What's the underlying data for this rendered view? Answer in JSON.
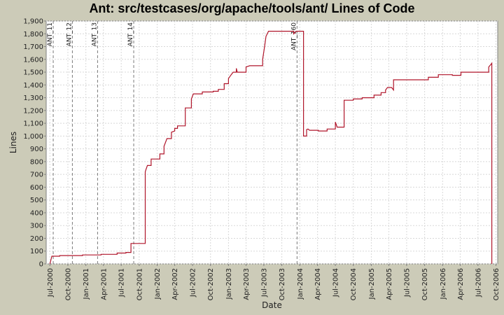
{
  "chart_data": {
    "type": "line",
    "title": "Ant: src/testcases/org/apache/tools/ant/ Lines of Code",
    "xlabel": "Date",
    "ylabel": "Lines",
    "ylim": [
      0,
      1900
    ],
    "y_ticks": [
      0,
      100,
      200,
      300,
      400,
      500,
      600,
      700,
      800,
      900,
      1000,
      1100,
      1200,
      1300,
      1400,
      1500,
      1600,
      1700,
      1800,
      1900
    ],
    "x_ticks": [
      "Jul-2000",
      "Oct-2000",
      "Jan-2001",
      "Apr-2001",
      "Jul-2001",
      "Oct-2001",
      "Jan-2002",
      "Apr-2002",
      "Jul-2002",
      "Oct-2002",
      "Jan-2003",
      "Apr-2003",
      "Jul-2003",
      "Oct-2003",
      "Jan-2004",
      "Apr-2004",
      "Jul-2004",
      "Oct-2004",
      "Jan-2005",
      "Apr-2005",
      "Jul-2005",
      "Oct-2005",
      "Jan-2006",
      "Apr-2006",
      "Jul-2006",
      "Oct-2006"
    ],
    "grid": true,
    "markers": [
      {
        "label": "ANT_11",
        "date": "2000-07-18"
      },
      {
        "label": "ANT_12",
        "date": "2000-10-24"
      },
      {
        "label": "ANT_13",
        "date": "2001-03-02"
      },
      {
        "label": "ANT_14",
        "date": "2001-09-03"
      },
      {
        "label": "ANT_160",
        "date": "2003-12-18"
      }
    ],
    "series": [
      {
        "color": "#b0162b",
        "points": [
          [
            "2000-07-01",
            0
          ],
          [
            "2000-07-06",
            30
          ],
          [
            "2000-07-11",
            60
          ],
          [
            "2000-08-20",
            60
          ],
          [
            "2000-08-20",
            65
          ],
          [
            "2000-12-15",
            65
          ],
          [
            "2000-12-15",
            70
          ],
          [
            "2001-03-20",
            70
          ],
          [
            "2001-03-20",
            75
          ],
          [
            "2001-06-10",
            75
          ],
          [
            "2001-06-10",
            85
          ],
          [
            "2001-07-25",
            85
          ],
          [
            "2001-07-25",
            90
          ],
          [
            "2001-08-20",
            90
          ],
          [
            "2001-08-20",
            160
          ],
          [
            "2001-11-01",
            160
          ],
          [
            "2001-11-01",
            720
          ],
          [
            "2001-11-05",
            740
          ],
          [
            "2001-11-12",
            770
          ],
          [
            "2001-12-01",
            770
          ],
          [
            "2001-12-01",
            820
          ],
          [
            "2002-01-15",
            820
          ],
          [
            "2002-01-15",
            860
          ],
          [
            "2002-02-05",
            860
          ],
          [
            "2002-02-05",
            920
          ],
          [
            "2002-02-20",
            980
          ],
          [
            "2002-03-15",
            980
          ],
          [
            "2002-03-15",
            1030
          ],
          [
            "2002-04-01",
            1040
          ],
          [
            "2002-04-01",
            1060
          ],
          [
            "2002-04-15",
            1060
          ],
          [
            "2002-04-15",
            1080
          ],
          [
            "2002-05-25",
            1080
          ],
          [
            "2002-05-25",
            1220
          ],
          [
            "2002-06-25",
            1220
          ],
          [
            "2002-06-25",
            1290
          ],
          [
            "2002-07-05",
            1330
          ],
          [
            "2002-08-20",
            1330
          ],
          [
            "2002-08-20",
            1345
          ],
          [
            "2002-10-15",
            1345
          ],
          [
            "2002-10-15",
            1350
          ],
          [
            "2002-11-10",
            1350
          ],
          [
            "2002-11-10",
            1365
          ],
          [
            "2002-12-10",
            1365
          ],
          [
            "2002-12-10",
            1410
          ],
          [
            "2003-01-01",
            1410
          ],
          [
            "2003-01-01",
            1450
          ],
          [
            "2003-01-15",
            1480
          ],
          [
            "2003-01-25",
            1500
          ],
          [
            "2003-02-10",
            1500
          ],
          [
            "2003-02-10",
            1530
          ],
          [
            "2003-02-15",
            1500
          ],
          [
            "2003-04-01",
            1500
          ],
          [
            "2003-04-01",
            1540
          ],
          [
            "2003-04-20",
            1550
          ],
          [
            "2003-06-25",
            1550
          ],
          [
            "2003-06-25",
            1600
          ],
          [
            "2003-07-05",
            1700
          ],
          [
            "2003-07-12",
            1780
          ],
          [
            "2003-07-25",
            1820
          ],
          [
            "2003-12-01",
            1820
          ],
          [
            "2003-12-01",
            1800
          ],
          [
            "2003-12-15",
            1820
          ],
          [
            "2004-01-20",
            1820
          ],
          [
            "2004-01-20",
            1000
          ],
          [
            "2004-02-05",
            1000
          ],
          [
            "2004-02-05",
            1050
          ],
          [
            "2004-02-12",
            1055
          ],
          [
            "2004-02-20",
            1045
          ],
          [
            "2004-04-05",
            1045
          ],
          [
            "2004-04-05",
            1040
          ],
          [
            "2004-05-20",
            1040
          ],
          [
            "2004-05-20",
            1055
          ],
          [
            "2004-07-01",
            1055
          ],
          [
            "2004-07-01",
            1110
          ],
          [
            "2004-07-10",
            1070
          ],
          [
            "2004-08-15",
            1070
          ],
          [
            "2004-08-15",
            1280
          ],
          [
            "2004-10-01",
            1280
          ],
          [
            "2004-10-01",
            1290
          ],
          [
            "2004-11-15",
            1290
          ],
          [
            "2004-11-15",
            1300
          ],
          [
            "2005-01-15",
            1300
          ],
          [
            "2005-01-15",
            1320
          ],
          [
            "2005-02-20",
            1320
          ],
          [
            "2005-02-20",
            1340
          ],
          [
            "2005-03-15",
            1340
          ],
          [
            "2005-03-15",
            1360
          ],
          [
            "2005-03-25",
            1380
          ],
          [
            "2005-04-15",
            1380
          ],
          [
            "2005-04-25",
            1360
          ],
          [
            "2005-04-25",
            1440
          ],
          [
            "2005-10-20",
            1440
          ],
          [
            "2005-10-20",
            1460
          ],
          [
            "2005-12-10",
            1460
          ],
          [
            "2005-12-10",
            1480
          ],
          [
            "2006-02-20",
            1480
          ],
          [
            "2006-02-20",
            1475
          ],
          [
            "2006-04-05",
            1475
          ],
          [
            "2006-04-05",
            1500
          ],
          [
            "2006-08-25",
            1500
          ],
          [
            "2006-08-25",
            1540
          ],
          [
            "2006-09-05",
            1560
          ],
          [
            "2006-09-10",
            1570
          ],
          [
            "2006-09-10",
            0
          ]
        ]
      }
    ]
  }
}
